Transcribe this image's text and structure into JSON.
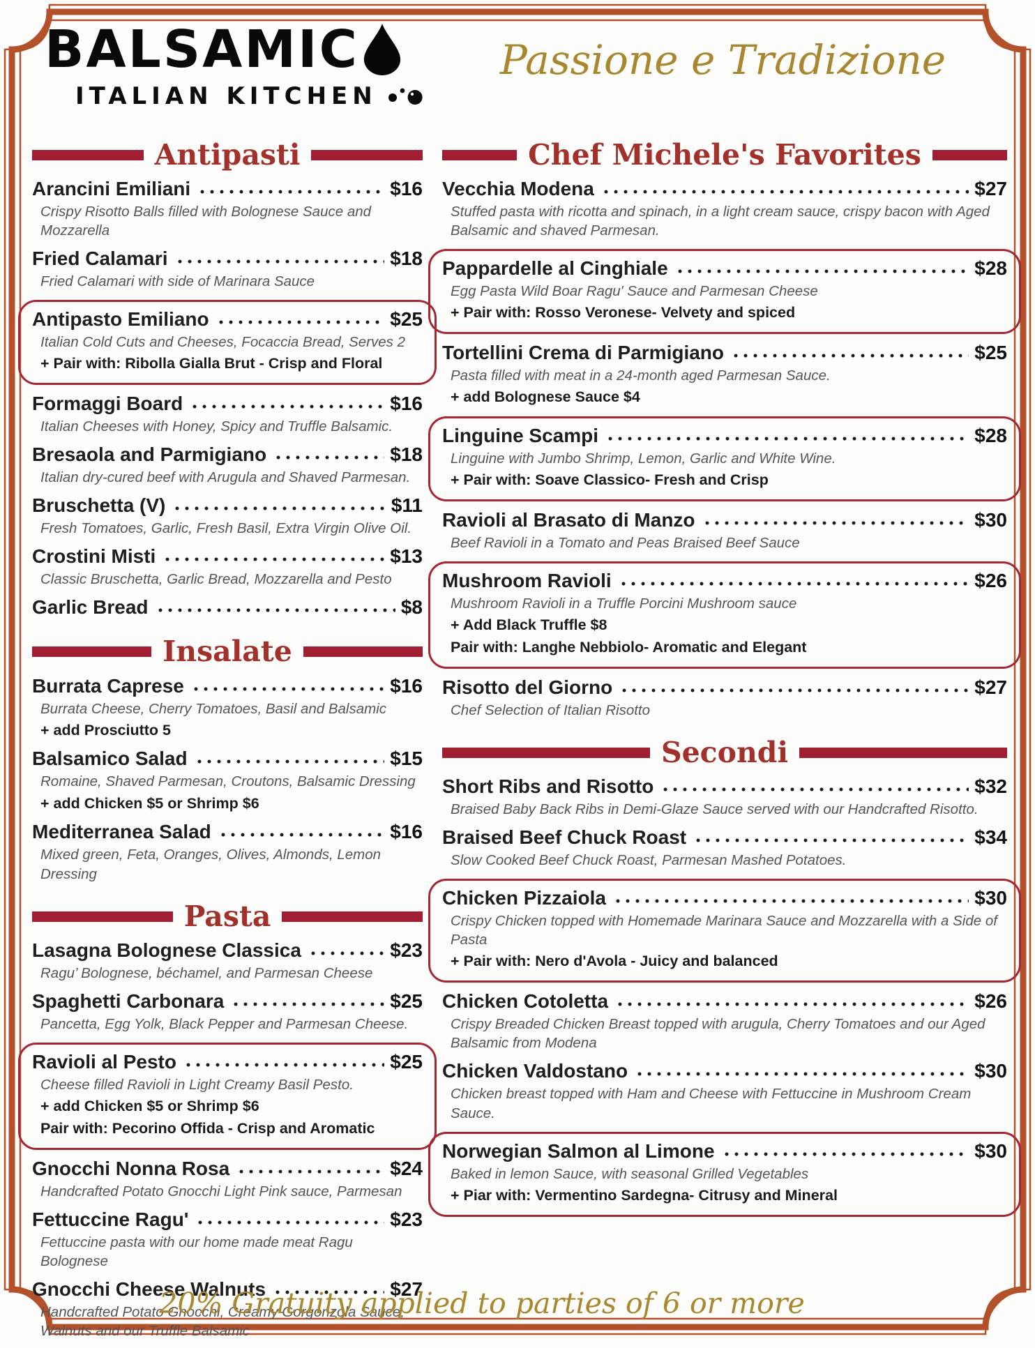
{
  "brand": {
    "name": "BALSAMIC",
    "subtitle": "ITALIAN KITCHEN",
    "tagline": "Passione e Tradizione"
  },
  "footer": {
    "note": "20% Gratuity applied to parties of 6 or more"
  },
  "colors": {
    "frame": "#b3512a",
    "section_bar": "#a11d31",
    "section_title": "#a2312c",
    "box_border": "#a62733",
    "gold": "#a8872f",
    "name_text": "#1e1e1e",
    "desc_text": "#555555"
  },
  "columns": [
    {
      "sections": [
        {
          "title": "Antipasti",
          "items": [
            {
              "name": "Arancini Emiliani",
              "price": "$16",
              "desc": "Crispy Risotto Balls filled with Bolognese Sauce and Mozzarella"
            },
            {
              "name": "Fried Calamari",
              "price": "$18",
              "desc": "Fried Calamari with side of Marinara Sauce"
            },
            {
              "name": "Antipasto Emiliano",
              "price": "$25",
              "boxed": true,
              "desc": "Italian Cold Cuts and Cheeses, Focaccia Bread, Serves 2",
              "extras": [
                "+ Pair with: Ribolla Gialla Brut - Crisp and Floral"
              ]
            },
            {
              "name": "Formaggi Board",
              "price": "$16",
              "desc": "Italian Cheeses with Honey, Spicy and Truffle Balsamic."
            },
            {
              "name": "Bresaola and Parmigiano",
              "price": "$18",
              "desc": "Italian dry-cured beef with Arugula and Shaved Parmesan."
            },
            {
              "name": "Bruschetta (V)",
              "price": "$11",
              "desc": "Fresh Tomatoes, Garlic, Fresh Basil, Extra Virgin Olive Oil."
            },
            {
              "name": "Crostini Misti",
              "price": "$13",
              "desc": "Classic Bruschetta, Garlic Bread, Mozzarella and Pesto"
            },
            {
              "name": "Garlic Bread",
              "price": "$8"
            }
          ]
        },
        {
          "title": "Insalate",
          "items": [
            {
              "name": "Burrata Caprese",
              "price": "$16",
              "desc": "Burrata Cheese, Cherry Tomatoes, Basil and Balsamic",
              "extras": [
                "+ add Prosciutto  5"
              ]
            },
            {
              "name": "Balsamico Salad",
              "price": "$15",
              "desc": "Romaine, Shaved Parmesan, Croutons, Balsamic Dressing",
              "extras": [
                "+ add Chicken $5 or Shrimp $6"
              ]
            },
            {
              "name": "Mediterranea Salad",
              "price": "$16",
              "desc": "Mixed green, Feta, Oranges, Olives, Almonds, Lemon Dressing"
            }
          ]
        },
        {
          "title": "Pasta",
          "items": [
            {
              "name": "Lasagna Bolognese Classica",
              "price": "$23",
              "desc": "Ragu’ Bolognese, béchamel, and Parmesan Cheese"
            },
            {
              "name": "Spaghetti Carbonara",
              "price": "$25",
              "desc": "Pancetta, Egg Yolk, Black Pepper and Parmesan Cheese."
            },
            {
              "name": "Ravioli al Pesto",
              "price": "$25",
              "boxed": true,
              "desc": "Cheese filled Ravioli in Light Creamy Basil Pesto.",
              "extras": [
                "+ add Chicken $5 or Shrimp $6",
                "Pair with: Pecorino Offida - Crisp and Aromatic"
              ]
            },
            {
              "name": "Gnocchi Nonna Rosa",
              "price": "$24",
              "desc": "Handcrafted Potato Gnocchi Light Pink sauce, Parmesan"
            },
            {
              "name": "Fettuccine Ragu'",
              "price": "$23",
              "desc": "Fettuccine pasta with our home made meat Ragu Bolognese"
            },
            {
              "name": "Gnocchi Cheese Walnuts",
              "price": "$27",
              "desc": "Handcrafted Potato Gnocchi, Creamy Gorgonzola Sauce, Walnuts and our Truffle Balsamic"
            }
          ]
        }
      ]
    },
    {
      "sections": [
        {
          "title": "Chef Michele's Favorites",
          "items": [
            {
              "name": "Vecchia Modena",
              "price": "$27",
              "desc": "Stuffed pasta with ricotta and spinach, in a light cream sauce, crispy bacon with Aged Balsamic and shaved Parmesan."
            },
            {
              "name": "Pappardelle al Cinghiale",
              "price": "$28",
              "boxed": true,
              "desc": "Egg Pasta Wild Boar Ragu' Sauce and Parmesan Cheese",
              "extras": [
                "+ Pair with: Rosso Veronese- Velvety and spiced"
              ]
            },
            {
              "name": "Tortellini Crema di Parmigiano",
              "price": "$25",
              "desc": "Pasta filled with meat in a 24-month aged Parmesan Sauce.",
              "extras": [
                "+ add Bolognese Sauce $4"
              ]
            },
            {
              "name": "Linguine Scampi",
              "price": "$28",
              "boxed": true,
              "desc": "Linguine with Jumbo Shrimp, Lemon, Garlic and White Wine.",
              "extras": [
                "+ Pair with: Soave Classico- Fresh and Crisp"
              ]
            },
            {
              "name": "Ravioli al Brasato di Manzo",
              "price": "$30",
              "desc": "Beef Ravioli in a Tomato and Peas Braised Beef Sauce"
            },
            {
              "name": "Mushroom Ravioli",
              "price": "$26",
              "boxed": true,
              "desc": "Mushroom Ravioli in a Truffle Porcini Mushroom sauce",
              "extras": [
                "+ Add Black Truffle $8",
                "Pair with: Langhe Nebbiolo- Aromatic and Elegant"
              ]
            },
            {
              "name": "Risotto del Giorno",
              "price": "$27",
              "desc": "Chef Selection of Italian Risotto"
            }
          ]
        },
        {
          "title": "Secondi",
          "items": [
            {
              "name": "Short Ribs and Risotto",
              "price": "$32",
              "desc": "Braised Baby Back Ribs in Demi-Glaze Sauce served with our Handcrafted Risotto."
            },
            {
              "name": "Braised Beef Chuck Roast",
              "price": "$34",
              "desc": "Slow Cooked Beef Chuck Roast, Parmesan Mashed Potatoes."
            },
            {
              "name": "Chicken Pizzaiola",
              "price": "$30",
              "boxed": true,
              "desc": "Crispy Chicken topped with Homemade Marinara Sauce and Mozzarella with a Side of Pasta",
              "extras": [
                "+ Pair with: Nero d'Avola - Juicy and balanced"
              ]
            },
            {
              "name": "Chicken Cotoletta",
              "price": "$26",
              "desc": "Crispy Breaded Chicken Breast topped with arugula, Cherry Tomatoes and our Aged Balsamic from Modena"
            },
            {
              "name": "Chicken Valdostano",
              "price": "$30",
              "desc": "Chicken breast topped with Ham and Cheese with Fettuccine in Mushroom Cream Sauce."
            },
            {
              "name": "Norwegian Salmon al Limone",
              "price": "$30",
              "boxed": true,
              "desc": "Baked in lemon Sauce, with seasonal Grilled Vegetables",
              "extras": [
                "+ Piar with: Vermentino Sardegna- Citrusy and Mineral"
              ]
            }
          ]
        }
      ]
    }
  ]
}
